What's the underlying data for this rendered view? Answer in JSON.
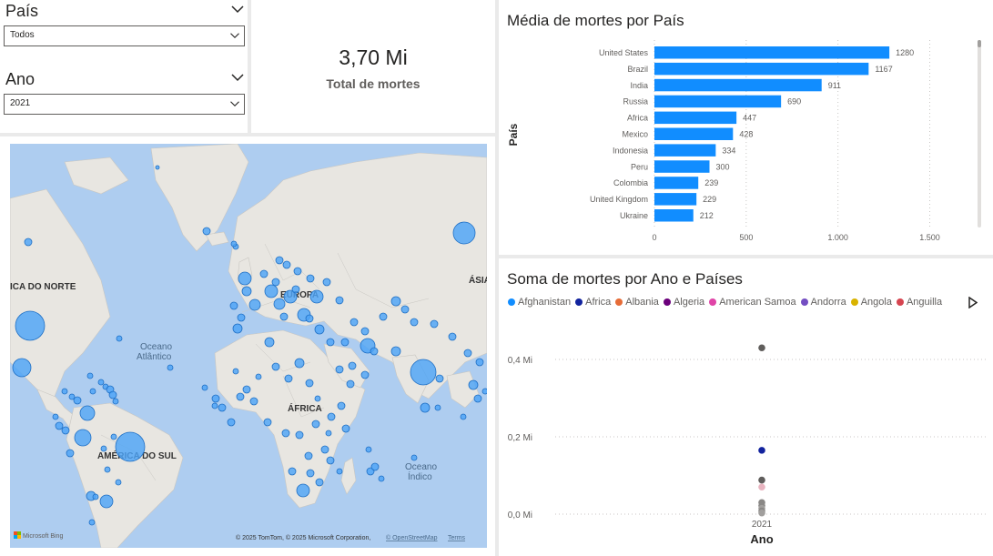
{
  "slicers": {
    "country": {
      "title": "País",
      "value": "Todos"
    },
    "year": {
      "title": "Ano",
      "value": "2021"
    }
  },
  "kpi": {
    "value": "3,70 Mi",
    "label": "Total de mortes"
  },
  "map": {
    "labels": {
      "north_america": "ICA DO NORTE",
      "europe": "EUROPA",
      "asia": "ÁSIA",
      "atlantic_line1": "Oceano",
      "atlantic_line2": "Atlântico",
      "africa": "ÁFRICA",
      "south_america": "AMÉRICA DO SUL",
      "indian_line1": "Oceano",
      "indian_line2": "Índico"
    },
    "bing_logo": "Microsoft Bing",
    "attribution": "© 2025 TomTom, © 2025 Microsoft Corporation,",
    "attribution_osm": "© OpenStreetMap",
    "attribution_terms": "Terms",
    "bubble_color": "#4da3f7",
    "bubble_stroke": "#1f6fc4"
  },
  "bar_chart": {
    "title": "Média de mortes por País",
    "ylabel": "País",
    "bar_color": "#118dff"
  },
  "scatter_chart": {
    "title": "Soma de mortes por Ano e Países",
    "xlabel": "Ano",
    "legend": [
      {
        "name": "Afghanistan",
        "color": "#118dff"
      },
      {
        "name": "Africa",
        "color": "#12239e"
      },
      {
        "name": "Albania",
        "color": "#e66c37"
      },
      {
        "name": "Algeria",
        "color": "#6b007b"
      },
      {
        "name": "American Samoa",
        "color": "#e044a7"
      },
      {
        "name": "Andorra",
        "color": "#744ec2"
      },
      {
        "name": "Angola",
        "color": "#d9b300"
      },
      {
        "name": "Anguilla",
        "color": "#d64550"
      }
    ]
  },
  "chart_data": [
    {
      "type": "bar",
      "orientation": "horizontal",
      "title": "Média de mortes por País",
      "ylabel": "País",
      "xlabel": "",
      "categories": [
        "United States",
        "Brazil",
        "India",
        "Russia",
        "Africa",
        "Mexico",
        "Indonesia",
        "Peru",
        "Colombia",
        "United Kingdom",
        "Ukraine"
      ],
      "values": [
        1280,
        1167,
        911,
        690,
        447,
        428,
        334,
        300,
        239,
        229,
        212
      ],
      "value_labels": [
        "1280",
        "1167",
        "911",
        "690",
        "447",
        "428",
        "334",
        "300",
        "239",
        "229",
        "212"
      ],
      "xlim": [
        0,
        1750
      ],
      "xticks": [
        0,
        500,
        1000,
        1500
      ],
      "xtick_labels": [
        "0",
        "500",
        "1.000",
        "1.500"
      ],
      "grid": true
    },
    {
      "type": "scatter",
      "title": "Soma de mortes por Ano e Países",
      "xlabel": "Ano",
      "ylabel": "",
      "x_categories": [
        "2021"
      ],
      "ylim": [
        0,
        0.5
      ],
      "yticks": [
        0,
        0.2,
        0.4
      ],
      "ytick_labels": [
        "0,0 Mi",
        "0,2 Mi",
        "0,4 Mi"
      ],
      "points": [
        {
          "x": "2021",
          "y": 0.43,
          "color": "#605e5c"
        },
        {
          "x": "2021",
          "y": 0.165,
          "color": "#12239e"
        },
        {
          "x": "2021",
          "y": 0.088,
          "color": "#605e5c"
        },
        {
          "x": "2021",
          "y": 0.07,
          "color": "#e8b4c0"
        },
        {
          "x": "2021",
          "y": 0.03,
          "color": "#8a8886"
        },
        {
          "x": "2021",
          "y": 0.022,
          "color": "#8a8886"
        },
        {
          "x": "2021",
          "y": 0.015,
          "color": "#a19f9d"
        },
        {
          "x": "2021",
          "y": 0.008,
          "color": "#8a8886"
        },
        {
          "x": "2021",
          "y": 0.003,
          "color": "#a19f9d"
        }
      ],
      "grid": true
    }
  ]
}
